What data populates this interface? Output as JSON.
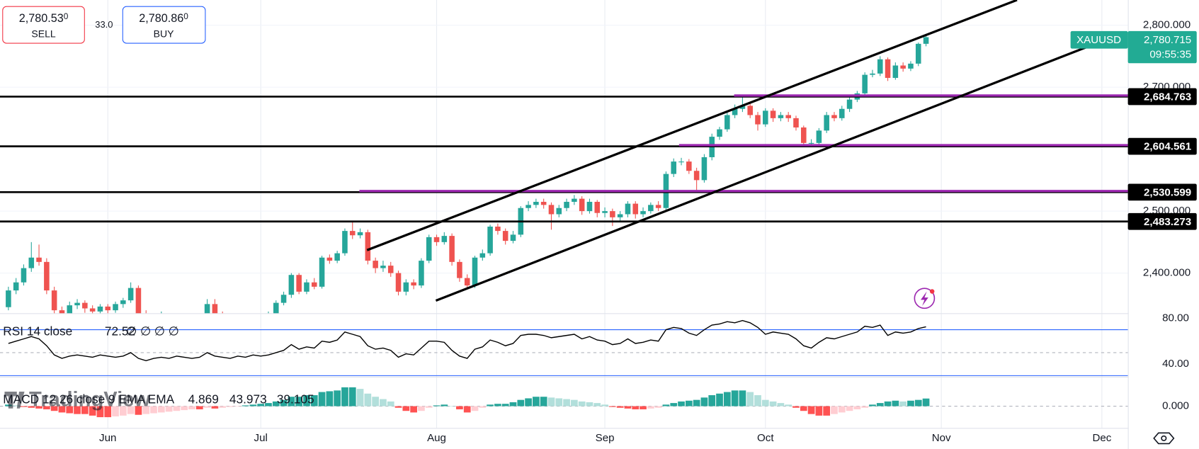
{
  "chart_data": {
    "type": "candlestick",
    "symbol": "XAUUSD",
    "categories": [
      null,
      null,
      null,
      null,
      null,
      null,
      null,
      null,
      null,
      null,
      null,
      null,
      null,
      "Jun",
      null,
      null,
      null,
      null,
      null,
      null,
      null,
      null,
      null,
      null,
      null,
      null,
      null,
      null,
      null,
      null,
      null,
      null,
      null,
      "Jul",
      null,
      null,
      null,
      null,
      null,
      null,
      null,
      null,
      null,
      null,
      null,
      null,
      null,
      null,
      null,
      null,
      null,
      null,
      null,
      null,
      null,
      null,
      "Aug",
      null,
      null,
      null,
      null,
      null,
      null,
      null,
      null,
      null,
      null,
      null,
      null,
      null,
      null,
      null,
      null,
      null,
      null,
      null,
      null,
      null,
      "Sep",
      null,
      null,
      null,
      null,
      null,
      null,
      null,
      null,
      null,
      null,
      null,
      null,
      null,
      null,
      null,
      null,
      null,
      null,
      null,
      null,
      "Oct",
      null,
      null,
      null,
      null,
      null,
      null,
      null,
      null,
      null,
      null,
      null,
      null,
      null,
      null,
      null,
      null,
      null,
      null,
      null,
      null,
      null,
      null,
      "Nov",
      null,
      null,
      null,
      null,
      null,
      null,
      null,
      null,
      null,
      null,
      null,
      null,
      null,
      null,
      null,
      null,
      null,
      null,
      null,
      null,
      "Dec"
    ],
    "open": [
      2345,
      2372,
      2385,
      2408,
      2425,
      2418,
      2372,
      2340,
      2335,
      2348,
      2352,
      2343,
      2338,
      2346,
      2340,
      2350,
      2356,
      2376,
      2335,
      2325,
      2322,
      2330,
      2328,
      2326,
      2320,
      2315,
      2330,
      2350,
      2335,
      2326,
      2322,
      2318,
      2325,
      2320,
      2328,
      2335,
      2352,
      2365,
      2397,
      2370,
      2385,
      2378,
      2425,
      2420,
      2432,
      2468,
      2461,
      2466,
      2420,
      2408,
      2412,
      2400,
      2370,
      2385,
      2380,
      2420,
      2458,
      2450,
      2460,
      2418,
      2392,
      2380,
      2425,
      2432,
      2475,
      2468,
      2452,
      2462,
      2505,
      2510,
      2515,
      2510,
      2495,
      2505,
      2515,
      2520,
      2500,
      2515,
      2497,
      2500,
      2490,
      2495,
      2512,
      2495,
      2500,
      2510,
      2505,
      2560,
      2580,
      2580,
      2565,
      2550,
      2587,
      2620,
      2632,
      2655,
      2665,
      2670,
      2655,
      2640,
      2662,
      2650,
      2655,
      2650,
      2635,
      2610,
      2610,
      2630,
      2655,
      2650,
      2665,
      2680,
      2690,
      2720,
      2722,
      2745,
      2715,
      2735,
      2730,
      2738,
      2770,
      null,
      null,
      null,
      null,
      null,
      null,
      null,
      null,
      null,
      null,
      null,
      null,
      null,
      null,
      null,
      null,
      null,
      null,
      null,
      null,
      null,
      null,
      null
    ],
    "high": [
      2378,
      2392,
      2414,
      2450,
      2446,
      2424,
      2378,
      2346,
      2354,
      2358,
      2356,
      2348,
      2350,
      2350,
      2354,
      2360,
      2385,
      2380,
      2340,
      2330,
      2338,
      2334,
      2332,
      2330,
      2324,
      2334,
      2358,
      2358,
      2338,
      2330,
      2326,
      2330,
      2330,
      2334,
      2338,
      2356,
      2370,
      2400,
      2400,
      2390,
      2392,
      2428,
      2430,
      2436,
      2472,
      2483,
      2472,
      2470,
      2425,
      2420,
      2418,
      2404,
      2390,
      2390,
      2424,
      2462,
      2462,
      2466,
      2464,
      2422,
      2398,
      2428,
      2438,
      2478,
      2480,
      2472,
      2468,
      2508,
      2516,
      2520,
      2520,
      2514,
      2510,
      2520,
      2526,
      2524,
      2520,
      2518,
      2506,
      2504,
      2500,
      2516,
      2516,
      2506,
      2514,
      2516,
      2564,
      2585,
      2586,
      2584,
      2570,
      2592,
      2625,
      2636,
      2660,
      2672,
      2685,
      2675,
      2660,
      2666,
      2666,
      2660,
      2660,
      2654,
      2638,
      2616,
      2634,
      2660,
      2660,
      2670,
      2684,
      2694,
      2724,
      2728,
      2750,
      2748,
      2740,
      2740,
      2742,
      2772,
      2785,
      null,
      null,
      null,
      null,
      null,
      null,
      null,
      null,
      null,
      null,
      null,
      null,
      null,
      null,
      null,
      null,
      null,
      null,
      null,
      null,
      null,
      null,
      null
    ],
    "low": [
      2340,
      2366,
      2380,
      2402,
      2412,
      2366,
      2330,
      2326,
      2330,
      2342,
      2336,
      2330,
      2332,
      2334,
      2336,
      2344,
      2352,
      2328,
      2318,
      2316,
      2318,
      2322,
      2320,
      2314,
      2310,
      2312,
      2326,
      2330,
      2320,
      2316,
      2312,
      2314,
      2316,
      2316,
      2324,
      2330,
      2348,
      2360,
      2366,
      2366,
      2374,
      2375,
      2415,
      2416,
      2428,
      2455,
      2456,
      2414,
      2400,
      2402,
      2394,
      2364,
      2364,
      2374,
      2376,
      2416,
      2444,
      2446,
      2412,
      2386,
      2374,
      2376,
      2420,
      2428,
      2462,
      2446,
      2448,
      2458,
      2500,
      2505,
      2504,
      2470,
      2490,
      2500,
      2510,
      2494,
      2496,
      2490,
      2490,
      2476,
      2484,
      2490,
      2488,
      2490,
      2496,
      2500,
      2502,
      2555,
      2574,
      2560,
      2530,
      2546,
      2582,
      2615,
      2628,
      2650,
      2660,
      2650,
      2630,
      2636,
      2644,
      2645,
      2644,
      2630,
      2604,
      2603,
      2606,
      2626,
      2645,
      2646,
      2660,
      2676,
      2686,
      2716,
      2718,
      2710,
      2712,
      2725,
      2726,
      2734,
      2766,
      null,
      null,
      null,
      null,
      null,
      null,
      null,
      null,
      null,
      null,
      null,
      null,
      null,
      null,
      null,
      null,
      null,
      null,
      null,
      null,
      null,
      null,
      null
    ],
    "close": [
      2372,
      2385,
      2408,
      2425,
      2418,
      2372,
      2340,
      2335,
      2348,
      2352,
      2343,
      2338,
      2346,
      2340,
      2350,
      2356,
      2376,
      2335,
      2325,
      2322,
      2330,
      2328,
      2326,
      2320,
      2315,
      2330,
      2350,
      2335,
      2326,
      2322,
      2318,
      2325,
      2320,
      2328,
      2335,
      2352,
      2365,
      2397,
      2370,
      2385,
      2378,
      2425,
      2420,
      2432,
      2468,
      2461,
      2466,
      2420,
      2408,
      2412,
      2400,
      2370,
      2385,
      2380,
      2420,
      2458,
      2450,
      2460,
      2418,
      2392,
      2380,
      2425,
      2432,
      2475,
      2468,
      2452,
      2462,
      2505,
      2510,
      2515,
      2510,
      2495,
      2505,
      2515,
      2520,
      2500,
      2515,
      2497,
      2500,
      2490,
      2495,
      2512,
      2495,
      2500,
      2510,
      2505,
      2560,
      2580,
      2580,
      2565,
      2550,
      2587,
      2620,
      2632,
      2655,
      2665,
      2670,
      2655,
      2640,
      2662,
      2650,
      2655,
      2650,
      2635,
      2610,
      2610,
      2630,
      2655,
      2650,
      2665,
      2680,
      2690,
      2720,
      2722,
      2745,
      2715,
      2735,
      2730,
      2738,
      2770,
      2780.715,
      null,
      null,
      null,
      null,
      null,
      null,
      null,
      null,
      null,
      null,
      null,
      null,
      null,
      null,
      null,
      null,
      null,
      null,
      null,
      null,
      null,
      null,
      null
    ],
    "up_color": "#26a69a",
    "down_color": "#ef5350",
    "ylim": [
      2334.6,
      2840.7
    ],
    "yticks": [
      {
        "value": 2800,
        "label": "2,800.000"
      },
      {
        "value": 2700,
        "label": "2,700.000"
      },
      {
        "value": 2500,
        "label": "2,500.000"
      },
      {
        "value": 2400,
        "label": "2,400.000"
      }
    ],
    "grid": true,
    "levels": [
      {
        "value": 2684.763,
        "label": "2,684.763"
      },
      {
        "value": 2604.561,
        "label": "2,604.561"
      },
      {
        "value": 2530.599,
        "label": "2,530.599"
      },
      {
        "value": 2483.273,
        "label": "2,483.273"
      }
    ],
    "level_color": "#000000",
    "zone_color": "#9c27b0",
    "last_price": {
      "value": 2780.715,
      "label": "2,780.715",
      "countdown": "09:55:35",
      "color": "#22ab94"
    },
    "rsi": {
      "label": "RSI 14 close",
      "na_labels": "∅ ∅ ∅ ∅",
      "color": "#000000",
      "band_color": "#2962ff",
      "values": [
        58,
        60,
        62,
        64,
        62,
        56,
        48,
        45,
        47,
        48,
        47,
        46,
        48,
        47,
        46,
        47,
        50,
        45,
        43,
        45,
        46,
        45,
        47,
        46,
        45,
        46,
        50,
        47,
        46,
        45,
        47,
        46,
        48,
        47,
        48,
        50,
        52,
        57,
        53,
        55,
        54,
        60,
        59,
        61,
        68,
        66,
        64,
        56,
        53,
        54,
        52,
        46,
        49,
        48,
        54,
        60,
        60,
        59,
        52,
        47,
        45,
        53,
        55,
        61,
        59,
        56,
        58,
        65,
        66,
        66,
        65,
        63,
        64,
        65,
        66,
        62,
        64,
        61,
        60,
        57,
        58,
        62,
        58,
        59,
        61,
        60,
        70,
        72,
        71,
        67,
        65,
        70,
        74,
        75,
        77,
        76,
        78,
        76,
        72,
        66,
        68,
        67,
        66,
        62,
        56,
        54,
        59,
        63,
        62,
        64,
        66,
        68,
        73,
        72,
        74,
        65,
        68,
        67,
        68,
        71,
        72.52,
        null,
        null,
        null,
        null,
        null,
        null,
        null,
        null,
        null,
        null,
        null,
        null,
        null,
        null,
        null,
        null,
        null,
        null,
        null,
        null,
        null,
        null,
        null
      ],
      "ylim": [
        28.7,
        84
      ],
      "yticks": [
        {
          "value": 80,
          "label": "80.00"
        },
        {
          "value": 40,
          "label": "40.00"
        }
      ],
      "bands": [
        70,
        30
      ],
      "midline": 50
    },
    "macd": {
      "label": "MACD 12 26 close 9 EMA EMA",
      "histogram": [
        1,
        0.5,
        -0.5,
        -1,
        -1.5,
        -2,
        -3,
        -4,
        -4.5,
        -5,
        -5,
        -6,
        -7,
        -7,
        -6.5,
        -6,
        -5,
        -5.5,
        -5,
        -4.5,
        -4,
        -3.5,
        -3,
        -2.5,
        -2,
        -2,
        -1,
        -1.5,
        -1,
        -0.5,
        -0.2,
        0.5,
        1,
        1.5,
        2,
        3,
        4,
        6,
        6,
        7,
        7,
        9,
        9.5,
        10,
        12,
        12,
        11,
        8,
        6,
        4.5,
        3,
        -1,
        -3,
        -4,
        -3,
        -1,
        0.5,
        1,
        0,
        -2,
        -4,
        -3,
        -1,
        1,
        1.5,
        1.5,
        2.5,
        4,
        5,
        6,
        6,
        5.5,
        5,
        4.5,
        4,
        3,
        2.5,
        2,
        1,
        -0.5,
        -1,
        -1.5,
        -2,
        -2,
        -1.5,
        -1,
        1,
        2,
        3,
        3.5,
        4,
        5.5,
        7,
        8,
        9,
        10,
        10,
        9,
        7,
        4,
        3,
        2,
        1,
        -1,
        -3,
        -5,
        -6,
        -6,
        -5,
        -4,
        -3,
        -2,
        -1,
        1,
        2,
        3,
        3.5,
        3,
        3.5,
        4,
        4.869,
        null,
        null,
        null,
        null,
        null,
        null,
        null,
        null,
        null,
        null,
        null,
        null,
        null,
        null,
        null,
        null,
        null,
        null,
        null,
        null,
        null,
        null,
        null
      ],
      "macd_value": 43.973,
      "signal_value": 39.105,
      "macd_color": "#2962ff",
      "signal_color": "#ff6d00",
      "colors": {
        "up_rising": "#26a69a",
        "up_falling": "#b2dfdb",
        "down_falling": "#ff5252",
        "down_rising": "#ffcdd2"
      },
      "ylim": [
        -14.1,
        18.5
      ],
      "yticks": [
        {
          "value": 0,
          "label": "0.000"
        }
      ]
    }
  },
  "trade": {
    "sell": {
      "price": "2,780.53",
      "price_small": "0",
      "label": "SELL"
    },
    "spread": "33.0",
    "buy": {
      "price": "2,780.86",
      "price_small": "0",
      "label": "BUY"
    }
  },
  "watermark": "TradingView"
}
